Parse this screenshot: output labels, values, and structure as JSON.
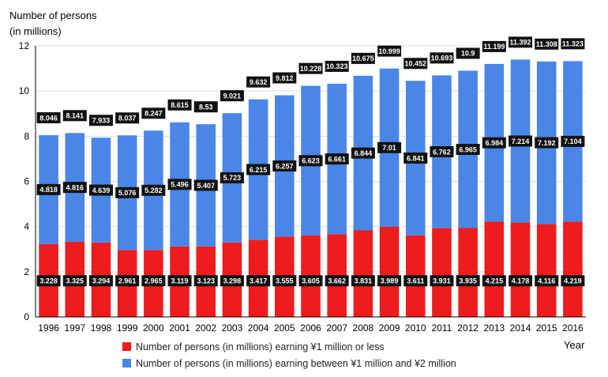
{
  "chart_data": {
    "type": "bar",
    "stacked": true,
    "ylabel_line1": "Number of persons",
    "ylabel_line2": "(in millions)",
    "xlabel": "Year",
    "ylim": [
      0,
      12
    ],
    "yticks": [
      "0",
      "2",
      "4",
      "6",
      "8",
      "10",
      "12"
    ],
    "grid": true,
    "legend_position": "bottom",
    "categories": [
      "1996",
      "1997",
      "1998",
      "1999",
      "2000",
      "2001",
      "2002",
      "2003",
      "2004",
      "2005",
      "2006",
      "2007",
      "2008",
      "2009",
      "2010",
      "2011",
      "2012",
      "2013",
      "2014",
      "2015",
      "2016"
    ],
    "series": [
      {
        "name": "Number of persons (in millions) earning ¥1 million or less",
        "color": "#ee1c1c",
        "values": [
          3.228,
          3.325,
          3.294,
          2.961,
          2.965,
          3.119,
          3.123,
          3.298,
          3.417,
          3.555,
          3.605,
          3.662,
          3.831,
          3.989,
          3.611,
          3.931,
          3.935,
          4.215,
          4.178,
          4.116,
          4.219
        ],
        "labels": [
          "3.228",
          "3.325",
          "3.294",
          "2.961",
          "2.965",
          "3.119",
          "3.123",
          "3.298",
          "3.417",
          "3.555",
          "3.605",
          "3.662",
          "3.831",
          "3.989",
          "3.611",
          "3.931",
          "3.935",
          "4.215",
          "4.178",
          "4.116",
          "4.219"
        ]
      },
      {
        "name": "Number of persons (in millions) earning between ¥1 million and ¥2 million",
        "color": "#4a86e8",
        "values": [
          4.818,
          4.816,
          4.639,
          5.076,
          5.282,
          5.496,
          5.407,
          5.723,
          6.215,
          6.257,
          6.623,
          6.661,
          6.844,
          7.01,
          6.841,
          6.762,
          6.965,
          6.984,
          7.214,
          7.192,
          7.104
        ],
        "labels": [
          "4.818",
          "4.816",
          "4.639",
          "5.076",
          "5.282",
          "5.496",
          "5.407",
          "5.723",
          "6.215",
          "6.257",
          "6.623",
          "6.661",
          "6.844",
          "7.01",
          "6.841",
          "6.762",
          "6.965",
          "6.984",
          "7.214",
          "7.192",
          "7.104"
        ]
      }
    ],
    "totals": [
      8.046,
      8.141,
      7.933,
      8.037,
      8.247,
      8.615,
      8.53,
      9.021,
      9.632,
      9.812,
      10.228,
      10.323,
      10.675,
      10.999,
      10.452,
      10.693,
      10.9,
      11.199,
      11.392,
      11.308,
      11.323
    ],
    "total_labels": [
      "8.046",
      "8.141",
      "7.933",
      "8.037",
      "8.247",
      "8.615",
      "8.53",
      "9.021",
      "9.632",
      "9.812",
      "10.228",
      "10.323",
      "10.675",
      "10.999",
      "10.452",
      "10.693",
      "10.9",
      "11.199",
      "11.392",
      "11.308",
      "11.323"
    ]
  }
}
